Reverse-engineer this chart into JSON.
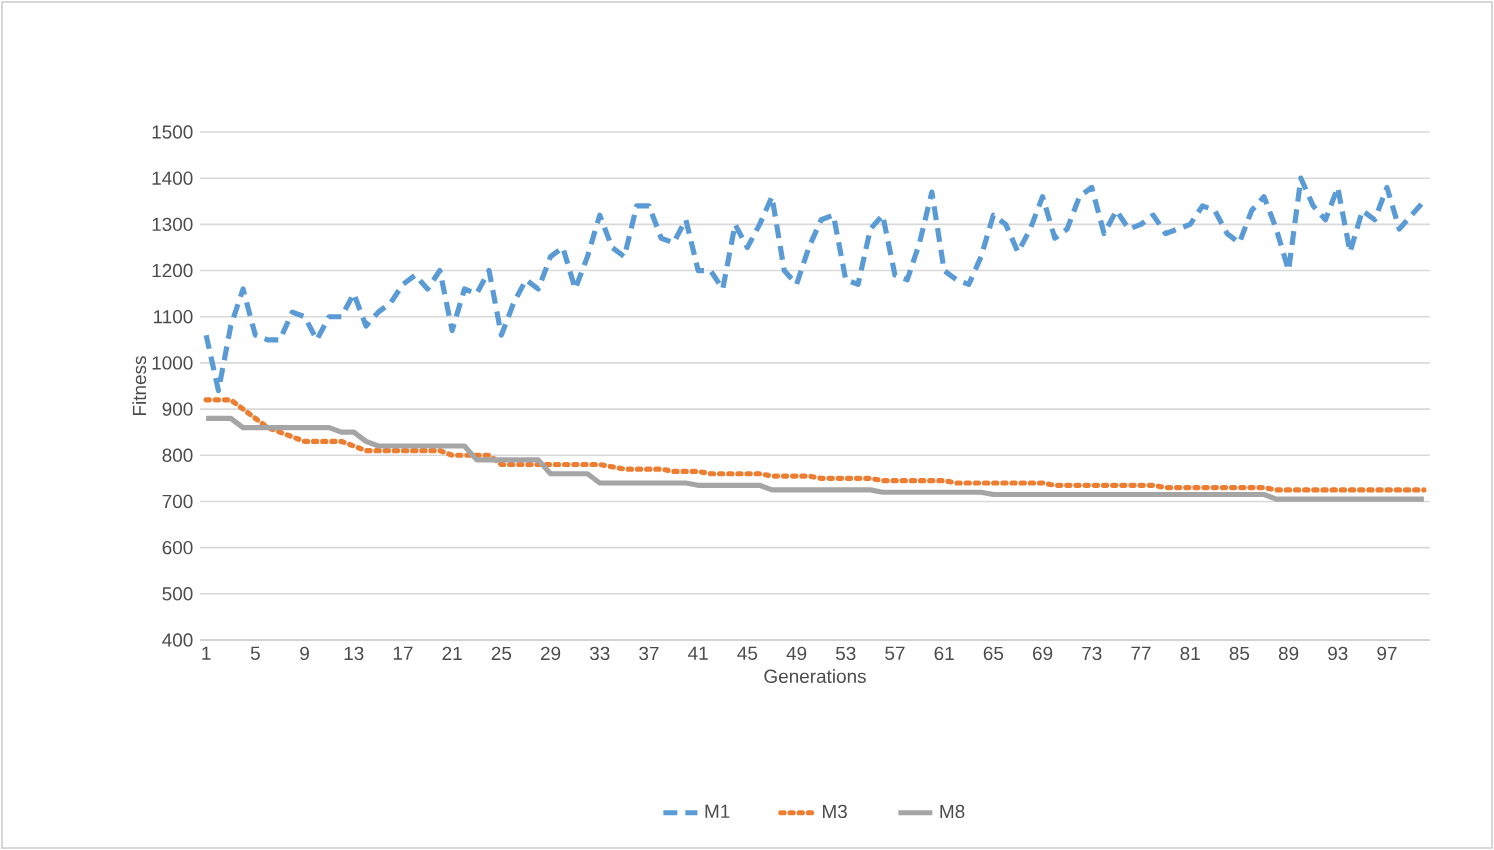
{
  "chart_data": {
    "type": "line",
    "xlabel": "Generations",
    "ylabel": "Fitness",
    "categories": [
      "1",
      null,
      null,
      null,
      "5",
      null,
      null,
      null,
      "9",
      null,
      null,
      null,
      "13",
      null,
      null,
      null,
      "17",
      null,
      null,
      null,
      "21",
      null,
      null,
      null,
      "25",
      null,
      null,
      null,
      "29",
      null,
      null,
      null,
      "33",
      null,
      null,
      null,
      "37",
      null,
      null,
      null,
      "41",
      null,
      null,
      null,
      "45",
      null,
      null,
      null,
      "49",
      null,
      null,
      null,
      "53",
      null,
      null,
      null,
      "57",
      null,
      null,
      null,
      "61",
      null,
      null,
      null,
      "65",
      null,
      null,
      null,
      "69",
      null,
      null,
      null,
      "73",
      null,
      null,
      null,
      "77",
      null,
      null,
      null,
      "81",
      null,
      null,
      null,
      "85",
      null,
      null,
      null,
      "89",
      null,
      null,
      null,
      "93",
      null,
      null,
      null,
      "97",
      null,
      null,
      null
    ],
    "series": [
      {
        "name": "M1",
        "color": "#5b9bd5",
        "line_style": "dashed",
        "values": [
          1060,
          940,
          1080,
          1160,
          1060,
          1050,
          1050,
          1110,
          1100,
          1050,
          1100,
          1100,
          1150,
          1080,
          1110,
          1130,
          1170,
          1190,
          1160,
          1200,
          1070,
          1160,
          1150,
          1200,
          1060,
          1130,
          1180,
          1160,
          1230,
          1250,
          1160,
          1230,
          1320,
          1250,
          1230,
          1340,
          1340,
          1270,
          1260,
          1310,
          1200,
          1200,
          1160,
          1300,
          1250,
          1300,
          1360,
          1200,
          1170,
          1250,
          1310,
          1320,
          1180,
          1170,
          1290,
          1320,
          1190,
          1180,
          1260,
          1370,
          1200,
          1180,
          1170,
          1230,
          1320,
          1300,
          1240,
          1290,
          1360,
          1270,
          1290,
          1360,
          1380,
          1280,
          1330,
          1290,
          1300,
          1320,
          1280,
          1290,
          1300,
          1340,
          1330,
          1280,
          1260,
          1330,
          1360,
          1290,
          1200,
          1400,
          1340,
          1310,
          1380,
          1240,
          1330,
          1310,
          1380,
          1290,
          1320,
          1350
        ]
      },
      {
        "name": "M3",
        "color": "#ed7d31",
        "line_style": "dotted",
        "values": [
          920,
          920,
          920,
          900,
          880,
          860,
          850,
          840,
          830,
          830,
          830,
          830,
          820,
          810,
          810,
          810,
          810,
          810,
          810,
          810,
          800,
          800,
          800,
          800,
          780,
          780,
          780,
          780,
          780,
          780,
          780,
          780,
          780,
          775,
          770,
          770,
          770,
          770,
          765,
          765,
          765,
          760,
          760,
          760,
          760,
          760,
          755,
          755,
          755,
          755,
          750,
          750,
          750,
          750,
          750,
          745,
          745,
          745,
          745,
          745,
          745,
          740,
          740,
          740,
          740,
          740,
          740,
          740,
          740,
          735,
          735,
          735,
          735,
          735,
          735,
          735,
          735,
          735,
          730,
          730,
          730,
          730,
          730,
          730,
          730,
          730,
          730,
          725,
          725,
          725,
          725,
          725,
          725,
          725,
          725,
          725,
          725,
          725,
          725,
          725
        ]
      },
      {
        "name": "M8",
        "color": "#a5a5a5",
        "line_style": "solid",
        "values": [
          880,
          880,
          880,
          860,
          860,
          860,
          860,
          860,
          860,
          860,
          860,
          850,
          850,
          830,
          820,
          820,
          820,
          820,
          820,
          820,
          820,
          820,
          790,
          790,
          790,
          790,
          790,
          790,
          760,
          760,
          760,
          760,
          740,
          740,
          740,
          740,
          740,
          740,
          740,
          740,
          735,
          735,
          735,
          735,
          735,
          735,
          725,
          725,
          725,
          725,
          725,
          725,
          725,
          725,
          725,
          720,
          720,
          720,
          720,
          720,
          720,
          720,
          720,
          720,
          715,
          715,
          715,
          715,
          715,
          715,
          715,
          715,
          715,
          715,
          715,
          715,
          715,
          715,
          715,
          715,
          715,
          715,
          715,
          715,
          715,
          715,
          715,
          705,
          705,
          705,
          705,
          705,
          705,
          705,
          705,
          705,
          705,
          705,
          705,
          705
        ]
      }
    ],
    "ylim": [
      400,
      1500
    ],
    "yticks": [
      400,
      500,
      600,
      700,
      800,
      900,
      1000,
      1100,
      1200,
      1300,
      1400,
      1500
    ],
    "grid": "y",
    "legend": "bottom",
    "marker": "none"
  }
}
